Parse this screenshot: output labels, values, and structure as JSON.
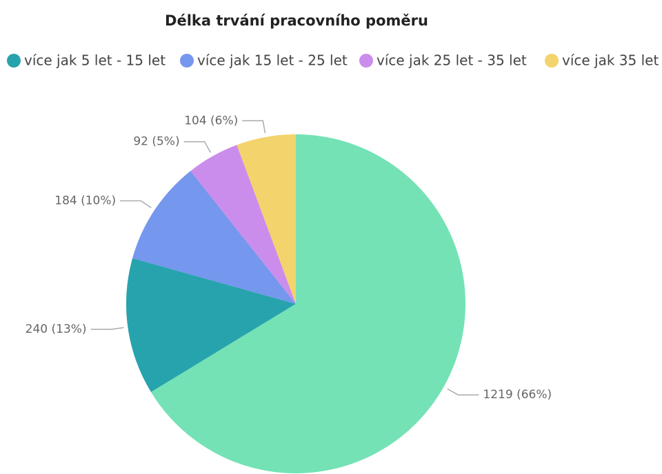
{
  "chart_data": {
    "type": "pie",
    "title": "Délka trvání pracovního poměru",
    "categories": [
      null,
      "více jak 5 let - 15 let",
      "více jak 15 let - 25 let",
      "více jak 25 let - 35 let",
      "více jak 35 let"
    ],
    "values": [
      1219,
      240,
      184,
      92,
      104
    ],
    "value_labels": [
      "1219 (66%)",
      "240 (13%)",
      "184 (10%)",
      "92 (5%)",
      "104 (6%)"
    ],
    "colors": [
      "#74e2b5",
      "#27a3ad",
      "#7597ee",
      "#cb8deb",
      "#f3d36b"
    ]
  }
}
